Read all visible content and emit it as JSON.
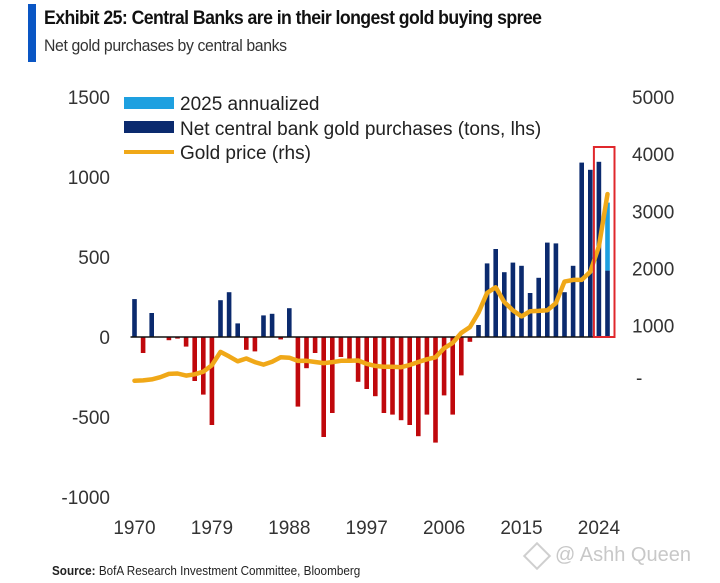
{
  "header": {
    "title": "Exhibit 25: Central Banks are in their longest gold buying spree",
    "subtitle": "Net gold purchases by central banks"
  },
  "source": {
    "label": "Source:",
    "text": " BofA Research Investment Committee, Bloomberg"
  },
  "watermark": "@ Ashh Queen",
  "colors": {
    "annualized": "#1ea0e0",
    "positive_bar": "#0b2a6e",
    "negative_bar": "#c0080c",
    "gold_line": "#f0a818",
    "highlight_box": "#e0282c",
    "accent": "#0a56c4"
  },
  "chart_data": {
    "type": "bar",
    "title": "Exhibit 25: Central Banks are in their longest gold buying spree",
    "subtitle": "Net gold purchases by central banks",
    "xlabel": "",
    "ylabel": "Net central bank gold purchases (tons)",
    "y2label": "Gold price",
    "ylim": [
      -1000,
      1500
    ],
    "y2lim": [
      -2000,
      5000
    ],
    "yticks": [
      1500,
      1000,
      500,
      0,
      -500,
      -1000
    ],
    "y2ticks": [
      5000,
      4000,
      3000,
      2000,
      1000,
      0
    ],
    "y2tick_labels": [
      "5000",
      "4000",
      "3000",
      "2000",
      "1000",
      "-"
    ],
    "xticks": [
      "1970",
      "1979",
      "1988",
      "1997",
      "2006",
      "2015",
      "2024"
    ],
    "grid": false,
    "legend_position": "top-left",
    "legend": [
      {
        "label": "2025 annualized",
        "type": "bar"
      },
      {
        "label": "Net central bank gold purchases (tons, lhs)",
        "type": "bar"
      },
      {
        "label": "Gold price (rhs)",
        "type": "line"
      }
    ],
    "x": [
      1970,
      1971,
      1972,
      1973,
      1974,
      1975,
      1976,
      1977,
      1978,
      1979,
      1980,
      1981,
      1982,
      1983,
      1984,
      1985,
      1986,
      1987,
      1988,
      1989,
      1990,
      1991,
      1992,
      1993,
      1994,
      1995,
      1996,
      1997,
      1998,
      1999,
      2000,
      2001,
      2002,
      2003,
      2004,
      2005,
      2006,
      2007,
      2008,
      2009,
      2010,
      2011,
      2012,
      2013,
      2014,
      2015,
      2016,
      2017,
      2018,
      2019,
      2020,
      2021,
      2022,
      2023,
      2024,
      2025
    ],
    "series": [
      {
        "name": "Net central bank gold purchases (tons, lhs)",
        "axis": "lhs",
        "values": [
          237,
          -100,
          150,
          0,
          -20,
          -10,
          -60,
          -275,
          -360,
          -550,
          230,
          280,
          85,
          -80,
          -90,
          135,
          145,
          -15,
          180,
          -435,
          -195,
          -100,
          -625,
          -475,
          -125,
          -160,
          -280,
          -325,
          -370,
          -475,
          -485,
          -520,
          -550,
          -620,
          -485,
          -660,
          -365,
          -485,
          -240,
          -30,
          75,
          460,
          550,
          405,
          465,
          445,
          275,
          370,
          590,
          585,
          280,
          445,
          1090,
          1045,
          1095,
          415
        ]
      },
      {
        "name": "2025 annualized",
        "axis": "lhs",
        "x": [
          2025
        ],
        "values": [
          840
        ]
      },
      {
        "name": "Gold price (rhs)",
        "axis": "rhs",
        "type": "line",
        "values": [
          36,
          41,
          58,
          97,
          154,
          161,
          125,
          148,
          193,
          307,
          540,
          460,
          375,
          424,
          360,
          317,
          368,
          446,
          437,
          381,
          383,
          362,
          343,
          360,
          384,
          384,
          388,
          331,
          294,
          279,
          279,
          271,
          310,
          363,
          409,
          445,
          604,
          697,
          872,
          973,
          1225,
          1572,
          1669,
          1411,
          1266,
          1160,
          1251,
          1257,
          1268,
          1393,
          1770,
          1799,
          1800,
          1943,
          2386,
          3300
        ]
      }
    ],
    "annotations": [
      {
        "type": "highlight-box",
        "x_range": [
          2024,
          2025
        ],
        "label": ""
      }
    ]
  }
}
